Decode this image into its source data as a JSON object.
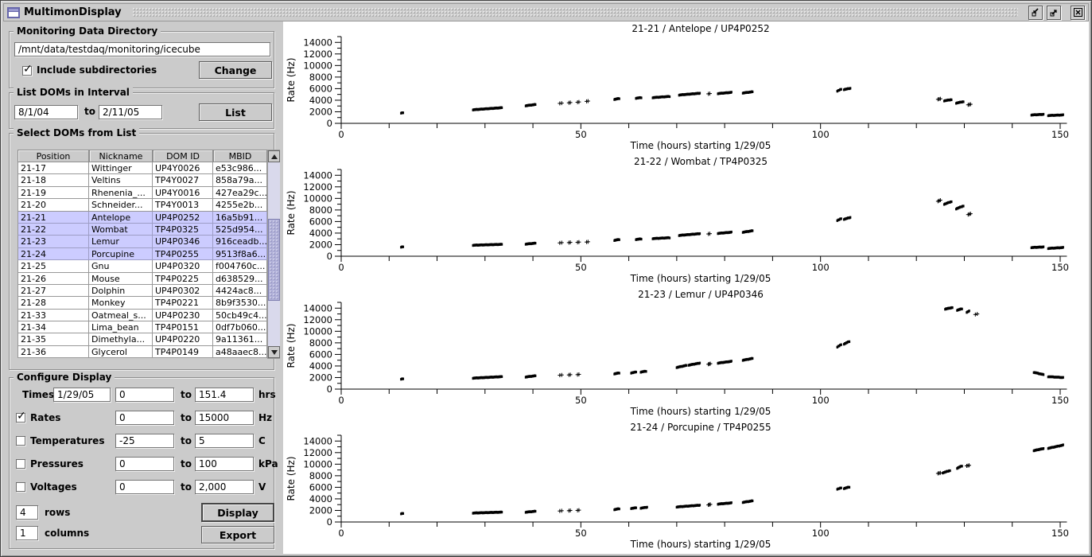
{
  "titlebar": {
    "title": "MultimonDisplay",
    "icons": {
      "app": "application-window-icon",
      "iconify": "iconify-arrow-icon",
      "maximize": "maximize-arrow-icon",
      "close": "close-x-icon"
    }
  },
  "colors": {
    "selection_bg": "#ccccff",
    "scrollbar_thumb": "#b0b0d8",
    "panel_bg": "#cbcbcb",
    "chart_bg": "#ffffff",
    "marker": "#000000"
  },
  "panel": {
    "monitoring": {
      "title": "Monitoring Data Directory",
      "path_value": "/mnt/data/testdaq/monitoring/icecube",
      "checkbox_label": "Include subdirectories",
      "checkbox_checked": true,
      "change_button": "Change"
    },
    "interval": {
      "title": "List DOMs in Interval",
      "from_value": "8/1/04",
      "to_label": "to",
      "to_value": "2/11/05",
      "list_button": "List"
    },
    "doms": {
      "title": "Select DOMs from List",
      "columns": [
        "Position",
        "Nickname",
        "DOM ID",
        "MBID"
      ],
      "rows": [
        {
          "position": "21-17",
          "nickname": "Wittinger",
          "dom_id": "UP4Y0026",
          "mbid": "e53c986...",
          "selected": false
        },
        {
          "position": "21-18",
          "nickname": "Veltins",
          "dom_id": "TP4Y0027",
          "mbid": "858a79a...",
          "selected": false
        },
        {
          "position": "21-19",
          "nickname": "Rhenenia_...",
          "dom_id": "UP4Y0016",
          "mbid": "427ea29c...",
          "selected": false
        },
        {
          "position": "21-20",
          "nickname": "Schneider...",
          "dom_id": "TP4Y0013",
          "mbid": "4255e2b...",
          "selected": false
        },
        {
          "position": "21-21",
          "nickname": "Antelope",
          "dom_id": "UP4P0252",
          "mbid": "16a5b91...",
          "selected": true
        },
        {
          "position": "21-22",
          "nickname": "Wombat",
          "dom_id": "TP4P0325",
          "mbid": "525d954...",
          "selected": true
        },
        {
          "position": "21-23",
          "nickname": "Lemur",
          "dom_id": "UP4P0346",
          "mbid": "916ceadb...",
          "selected": true
        },
        {
          "position": "21-24",
          "nickname": "Porcupine",
          "dom_id": "TP4P0255",
          "mbid": "9513f8a6...",
          "selected": true
        },
        {
          "position": "21-25",
          "nickname": "Gnu",
          "dom_id": "UP4P0320",
          "mbid": "f004760c...",
          "selected": false
        },
        {
          "position": "21-26",
          "nickname": "Mouse",
          "dom_id": "TP4P0225",
          "mbid": "d638529...",
          "selected": false
        },
        {
          "position": "21-27",
          "nickname": "Dolphin",
          "dom_id": "UP4P0302",
          "mbid": "4424ac8...",
          "selected": false
        },
        {
          "position": "21-28",
          "nickname": "Monkey",
          "dom_id": "TP4P0221",
          "mbid": "8b9f3530...",
          "selected": false
        },
        {
          "position": "21-33",
          "nickname": "Oatmeal_s...",
          "dom_id": "UP4P0230",
          "mbid": "50cb49c4...",
          "selected": false
        },
        {
          "position": "21-34",
          "nickname": "Lima_bean",
          "dom_id": "TP4P0151",
          "mbid": "0df7b060...",
          "selected": false
        },
        {
          "position": "21-35",
          "nickname": "Dimethyla...",
          "dom_id": "UP4P0220",
          "mbid": "9a11361...",
          "selected": false
        },
        {
          "position": "21-36",
          "nickname": "Glycerol",
          "dom_id": "TP4P0149",
          "mbid": "a48aaec8...",
          "selected": false
        }
      ]
    },
    "configure": {
      "title": "Configure Display",
      "to_label": "to",
      "rows": [
        {
          "name": "times",
          "label": "Times",
          "has_checkbox": false,
          "checked": false,
          "date_value": "1/29/05",
          "from_value": "0",
          "to_value": "151.4",
          "unit": "hrs"
        },
        {
          "name": "rates",
          "label": "Rates",
          "has_checkbox": true,
          "checked": true,
          "from_value": "0",
          "to_value": "15000",
          "unit": "Hz"
        },
        {
          "name": "temperatures",
          "label": "Temperatures",
          "has_checkbox": true,
          "checked": false,
          "from_value": "-25",
          "to_value": "5",
          "unit": "C"
        },
        {
          "name": "pressures",
          "label": "Pressures",
          "has_checkbox": true,
          "checked": false,
          "from_value": "0",
          "to_value": "100",
          "unit": "kPa"
        },
        {
          "name": "voltages",
          "label": "Voltages",
          "has_checkbox": true,
          "checked": false,
          "from_value": "0",
          "to_value": "2,000",
          "unit": "V"
        }
      ],
      "rows_value": "4",
      "rows_label": "rows",
      "columns_value": "1",
      "columns_label": "columns",
      "display_button": "Display",
      "export_button": "Export"
    }
  },
  "chart_data": [
    {
      "type": "scatter",
      "title": "21-21 / Antelope / UP4P0252",
      "xlabel": "Time (hours) starting 1/29/05",
      "ylabel": "Rate (Hz)",
      "xlim": [
        0,
        151.4
      ],
      "ylim": [
        0,
        15000
      ],
      "xticks_major": [
        0,
        50,
        100,
        150
      ],
      "xtick_minor_step": 10,
      "ytick_major_step": 2000,
      "ytick_minor_step": 1000,
      "grid": false,
      "legend": "none",
      "segments": [
        [
          12.5,
          12.9,
          1800,
          1850,
          3,
          "s"
        ],
        [
          27.5,
          33.5,
          2350,
          2700,
          42,
          "s"
        ],
        [
          38.5,
          40.5,
          3050,
          3250,
          14,
          "s"
        ],
        [
          45.6,
          46.0,
          3450,
          3500,
          2,
          "p"
        ],
        [
          47.5,
          47.8,
          3550,
          3600,
          2,
          "p"
        ],
        [
          49.3,
          49.6,
          3650,
          3700,
          2,
          "p"
        ],
        [
          51.2,
          51.5,
          3800,
          3850,
          2,
          "p"
        ],
        [
          57.0,
          58.0,
          4150,
          4300,
          8,
          "s"
        ],
        [
          61.5,
          62.6,
          4350,
          4450,
          8,
          "s"
        ],
        [
          65.0,
          68.5,
          4450,
          4650,
          22,
          "s"
        ],
        [
          70.5,
          74.8,
          4900,
          5200,
          30,
          "s"
        ],
        [
          76.6,
          76.9,
          5100,
          5150,
          2,
          "p"
        ],
        [
          78.6,
          81.4,
          5150,
          5350,
          20,
          "s"
        ],
        [
          83.8,
          85.8,
          5250,
          5450,
          14,
          "s"
        ],
        [
          103.5,
          104.3,
          5600,
          5900,
          5,
          "s"
        ],
        [
          104.9,
          106.2,
          5850,
          6050,
          9,
          "s"
        ],
        [
          124.5,
          125.0,
          4150,
          4250,
          3,
          "p"
        ],
        [
          125.8,
          127.3,
          3900,
          4100,
          10,
          "s"
        ],
        [
          128.3,
          129.8,
          3500,
          3750,
          10,
          "s"
        ],
        [
          130.8,
          131.3,
          3200,
          3300,
          3,
          "p"
        ],
        [
          144.0,
          146.5,
          1450,
          1550,
          18,
          "s"
        ],
        [
          147.5,
          150.6,
          1350,
          1450,
          20,
          "s"
        ]
      ]
    },
    {
      "type": "scatter",
      "title": "21-22 / Wombat / TP4P0325",
      "xlabel": "Time (hours) starting 1/29/05",
      "ylabel": "Rate (Hz)",
      "xlim": [
        0,
        151.4
      ],
      "ylim": [
        0,
        15000
      ],
      "xticks_major": [
        0,
        50,
        100,
        150
      ],
      "xtick_minor_step": 10,
      "ytick_major_step": 2000,
      "ytick_minor_step": 1000,
      "grid": false,
      "legend": "none",
      "segments": [
        [
          12.5,
          12.9,
          1600,
          1650,
          3,
          "s"
        ],
        [
          27.5,
          33.5,
          1900,
          2050,
          42,
          "s"
        ],
        [
          38.5,
          40.5,
          2100,
          2250,
          14,
          "s"
        ],
        [
          45.6,
          46.0,
          2300,
          2350,
          2,
          "p"
        ],
        [
          47.5,
          47.8,
          2350,
          2400,
          2,
          "p"
        ],
        [
          49.3,
          49.6,
          2400,
          2450,
          2,
          "p"
        ],
        [
          51.2,
          51.5,
          2450,
          2500,
          2,
          "p"
        ],
        [
          57.0,
          58.0,
          2750,
          2900,
          8,
          "s"
        ],
        [
          61.5,
          62.6,
          2900,
          3000,
          8,
          "s"
        ],
        [
          65.0,
          68.5,
          3050,
          3200,
          22,
          "s"
        ],
        [
          70.5,
          74.8,
          3600,
          3900,
          30,
          "s"
        ],
        [
          76.6,
          76.9,
          3850,
          3900,
          2,
          "p"
        ],
        [
          78.6,
          81.4,
          3950,
          4150,
          20,
          "s"
        ],
        [
          83.8,
          85.8,
          4150,
          4400,
          14,
          "s"
        ],
        [
          103.5,
          104.3,
          6200,
          6500,
          5,
          "s"
        ],
        [
          104.9,
          106.2,
          6400,
          6700,
          9,
          "s"
        ],
        [
          124.5,
          125.0,
          9500,
          9700,
          3,
          "p"
        ],
        [
          125.8,
          127.3,
          9000,
          9450,
          10,
          "s"
        ],
        [
          128.3,
          129.8,
          8200,
          8700,
          10,
          "s"
        ],
        [
          130.8,
          131.3,
          7200,
          7350,
          3,
          "p"
        ],
        [
          144.0,
          146.5,
          1500,
          1600,
          18,
          "s"
        ],
        [
          147.5,
          150.6,
          1350,
          1500,
          20,
          "s"
        ]
      ]
    },
    {
      "type": "scatter",
      "title": "21-23 / Lemur / UP4P0346",
      "xlabel": "Time (hours) starting 1/29/05",
      "ylabel": "Rate (Hz)",
      "xlim": [
        0,
        151.4
      ],
      "ylim": [
        0,
        15000
      ],
      "xticks_major": [
        0,
        50,
        100,
        150
      ],
      "xtick_minor_step": 10,
      "ytick_major_step": 2000,
      "ytick_minor_step": 1000,
      "grid": false,
      "legend": "none",
      "segments": [
        [
          12.5,
          12.9,
          1750,
          1800,
          3,
          "s"
        ],
        [
          27.5,
          33.5,
          1900,
          2150,
          42,
          "s"
        ],
        [
          38.5,
          40.5,
          2100,
          2300,
          14,
          "s"
        ],
        [
          45.6,
          46.0,
          2400,
          2450,
          2,
          "p"
        ],
        [
          47.5,
          47.8,
          2450,
          2500,
          2,
          "p"
        ],
        [
          49.3,
          49.6,
          2500,
          2550,
          2,
          "p"
        ],
        [
          57.0,
          58.0,
          2650,
          2800,
          8,
          "s"
        ],
        [
          60.5,
          61.5,
          2800,
          2950,
          7,
          "s"
        ],
        [
          62.5,
          63.6,
          2950,
          3100,
          8,
          "s"
        ],
        [
          70.0,
          72.0,
          3750,
          4100,
          14,
          "s"
        ],
        [
          72.5,
          74.8,
          4150,
          4500,
          16,
          "s"
        ],
        [
          76.6,
          77.0,
          4300,
          4400,
          3,
          "p"
        ],
        [
          78.6,
          81.4,
          4500,
          4800,
          20,
          "s"
        ],
        [
          83.8,
          85.8,
          5000,
          5300,
          14,
          "s"
        ],
        [
          103.5,
          104.3,
          7300,
          7700,
          5,
          "s"
        ],
        [
          104.9,
          106.0,
          7800,
          8250,
          8,
          "s"
        ],
        [
          126.0,
          127.5,
          13850,
          14100,
          12,
          "s"
        ],
        [
          128.5,
          129.5,
          13650,
          13900,
          8,
          "s"
        ],
        [
          130.5,
          131.0,
          13300,
          13500,
          4,
          "s"
        ],
        [
          132.3,
          132.7,
          12900,
          13000,
          2,
          "p"
        ],
        [
          144.5,
          146.5,
          2900,
          2500,
          14,
          "s"
        ],
        [
          147.5,
          150.6,
          2150,
          2000,
          18,
          "s"
        ]
      ]
    },
    {
      "type": "scatter",
      "title": "21-24 / Porcupine / TP4P0255",
      "xlabel": "Time (hours) starting 1/29/05",
      "ylabel": "Rate (Hz)",
      "xlim": [
        0,
        151.4
      ],
      "ylim": [
        0,
        15000
      ],
      "xticks_major": [
        0,
        50,
        100,
        150
      ],
      "xtick_minor_step": 10,
      "ytick_major_step": 2000,
      "ytick_minor_step": 1000,
      "grid": false,
      "legend": "none",
      "segments": [
        [
          12.5,
          12.9,
          1450,
          1500,
          3,
          "s"
        ],
        [
          27.5,
          33.5,
          1550,
          1700,
          42,
          "s"
        ],
        [
          38.5,
          40.5,
          1700,
          1850,
          14,
          "s"
        ],
        [
          45.6,
          46.0,
          1900,
          1950,
          2,
          "p"
        ],
        [
          47.5,
          47.8,
          1950,
          2000,
          2,
          "p"
        ],
        [
          49.3,
          49.6,
          2000,
          2050,
          2,
          "p"
        ],
        [
          57.0,
          58.0,
          2150,
          2300,
          8,
          "s"
        ],
        [
          60.5,
          61.5,
          2350,
          2450,
          7,
          "s"
        ],
        [
          62.5,
          63.8,
          2400,
          2550,
          9,
          "s"
        ],
        [
          70.0,
          74.8,
          2600,
          2900,
          30,
          "s"
        ],
        [
          76.6,
          77.0,
          2950,
          3050,
          3,
          "p"
        ],
        [
          78.6,
          81.4,
          3100,
          3300,
          20,
          "s"
        ],
        [
          83.8,
          85.8,
          3400,
          3650,
          14,
          "s"
        ],
        [
          103.5,
          104.3,
          5700,
          5900,
          5,
          "s"
        ],
        [
          104.9,
          106.0,
          5800,
          6050,
          8,
          "s"
        ],
        [
          124.5,
          125.0,
          8400,
          8500,
          3,
          "p"
        ],
        [
          125.5,
          127.0,
          8500,
          8900,
          10,
          "s"
        ],
        [
          128.5,
          129.5,
          9300,
          9700,
          8,
          "s"
        ],
        [
          130.5,
          131.0,
          9700,
          9800,
          3,
          "p"
        ],
        [
          144.5,
          146.5,
          12350,
          12700,
          16,
          "s"
        ],
        [
          147.5,
          150.6,
          12750,
          13300,
          20,
          "s"
        ]
      ]
    }
  ]
}
